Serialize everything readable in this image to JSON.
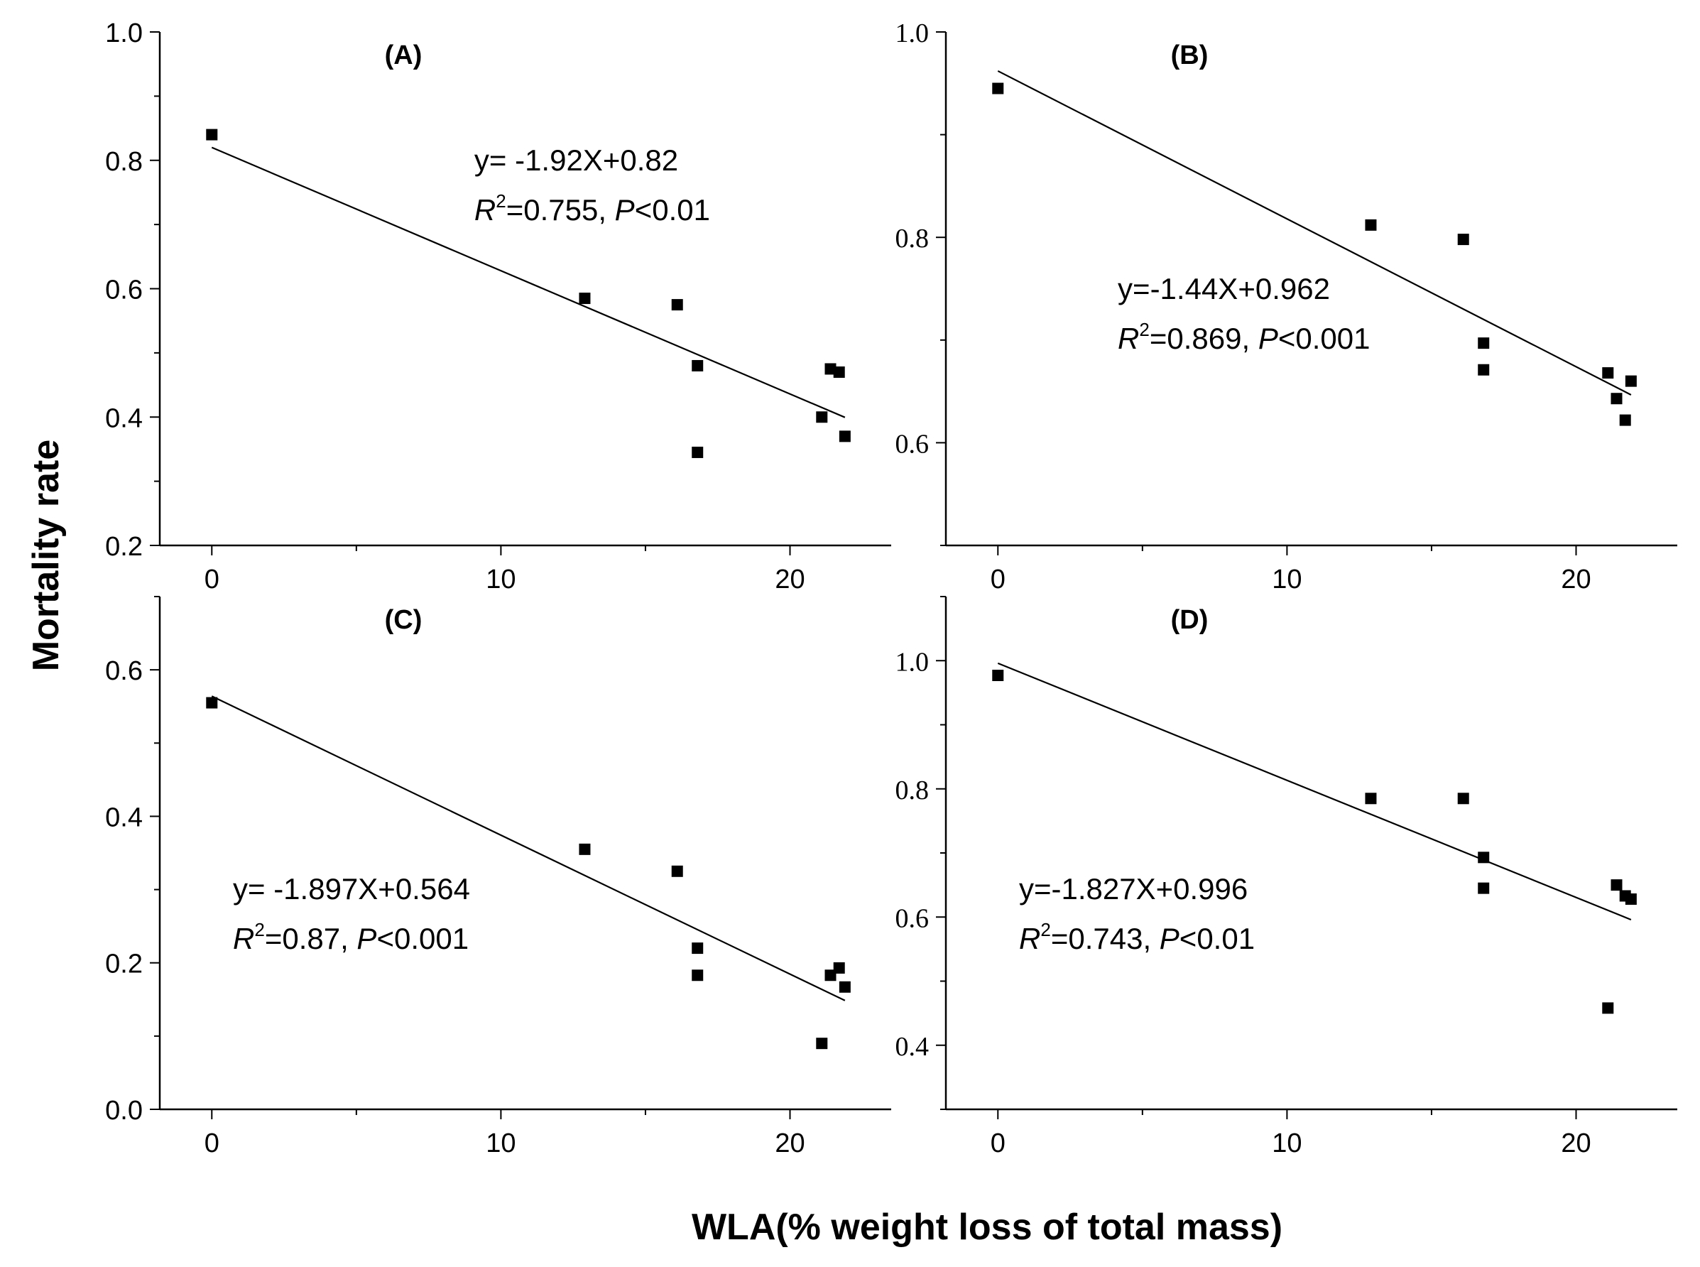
{
  "figure": {
    "ylabel": "Mortality rate",
    "xlabel": "WLA(% weight loss of total mass)"
  },
  "chart_data": [
    {
      "type": "scatter",
      "title": "(A)",
      "xlabel": "WLA(% weight loss of total mass)",
      "ylabel": "Mortality rate",
      "xlim": [
        -1.8,
        23.5
      ],
      "ylim": [
        0.2,
        1.0
      ],
      "xticks": [
        0,
        10,
        20
      ],
      "yticks": [
        0.2,
        0.4,
        0.6,
        0.8,
        1.0
      ],
      "ytick_labels": [
        "0.2",
        "0.4",
        "0.6",
        "0.8",
        "1.0"
      ],
      "tick_font": "sans",
      "show_xticklabels": true,
      "x": [
        0,
        12.9,
        16.1,
        16.8,
        16.8,
        21.1,
        21.4,
        21.7,
        21.9
      ],
      "y": [
        0.84,
        0.585,
        0.575,
        0.48,
        0.345,
        0.4,
        0.475,
        0.47,
        0.37
      ],
      "fit": {
        "slope": -0.0192,
        "intercept": 0.82,
        "x_range": [
          0,
          21.9
        ]
      },
      "equation": "y= -1.92X+0.82",
      "r2_label": "R",
      "r2_value": "=0.755, ",
      "p_label": "P",
      "p_value": "<0.01",
      "annotation_pos": "top-right"
    },
    {
      "type": "scatter",
      "title": "(B)",
      "xlabel": "WLA(% weight loss of total mass)",
      "ylabel": "Mortality rate",
      "xlim": [
        -1.8,
        23.5
      ],
      "ylim": [
        0.5,
        1.0
      ],
      "xticks": [
        0,
        10,
        20
      ],
      "yticks": [
        0.6,
        0.8,
        1.0
      ],
      "ytick_labels": [
        "0.6",
        "0.8",
        "1.0"
      ],
      "tick_font": "serif",
      "show_xticklabels": true,
      "x": [
        0,
        12.9,
        16.1,
        16.8,
        16.8,
        21.1,
        21.4,
        21.7,
        21.9
      ],
      "y": [
        0.945,
        0.812,
        0.798,
        0.697,
        0.671,
        0.668,
        0.643,
        0.622,
        0.66
      ],
      "fit": {
        "slope": -0.0144,
        "intercept": 0.962,
        "x_range": [
          0,
          21.9
        ]
      },
      "equation": "y=-1.44X+0.962",
      "r2_label": "R",
      "r2_value": "=0.869, ",
      "p_label": "P",
      "p_value": "<0.001",
      "annotation_pos": "middle-right"
    },
    {
      "type": "scatter",
      "title": "(C)",
      "xlabel": "WLA(% weight loss of total mass)",
      "ylabel": "Mortality rate",
      "xlim": [
        -1.8,
        23.5
      ],
      "ylim": [
        0.0,
        0.7
      ],
      "xticks": [
        0,
        10,
        20
      ],
      "yticks": [
        0.0,
        0.2,
        0.4,
        0.6
      ],
      "ytick_labels": [
        "0.0",
        "0.2",
        "0.4",
        "0.6"
      ],
      "tick_font": "sans",
      "show_xticklabels": true,
      "x": [
        0,
        12.9,
        16.1,
        16.8,
        16.8,
        21.1,
        21.4,
        21.7,
        21.9
      ],
      "y": [
        0.555,
        0.355,
        0.325,
        0.22,
        0.183,
        0.09,
        0.183,
        0.193,
        0.167
      ],
      "fit": {
        "slope": -0.01897,
        "intercept": 0.564,
        "x_range": [
          0,
          21.9
        ]
      },
      "equation": "y= -1.897X+0.564",
      "r2_label": "R",
      "r2_value": "=0.87, ",
      "p_label": "P",
      "p_value": "<0.001",
      "annotation_pos": "middle-center"
    },
    {
      "type": "scatter",
      "title": "(D)",
      "xlabel": "WLA(% weight loss of total mass)",
      "ylabel": "Mortality rate",
      "xlim": [
        -1.8,
        23.5
      ],
      "ylim": [
        0.3,
        1.1
      ],
      "xticks": [
        0,
        10,
        20
      ],
      "yticks": [
        0.4,
        0.6,
        0.8,
        1.0
      ],
      "ytick_labels": [
        "0.4",
        "0.6",
        "0.8",
        "1.0"
      ],
      "tick_font": "serif",
      "show_xticklabels": true,
      "x": [
        0,
        12.9,
        16.1,
        16.8,
        16.8,
        21.1,
        21.4,
        21.7,
        21.9
      ],
      "y": [
        0.977,
        0.785,
        0.785,
        0.693,
        0.645,
        0.458,
        0.65,
        0.633,
        0.628
      ],
      "fit": {
        "slope": -0.01827,
        "intercept": 0.996,
        "x_range": [
          0,
          21.9
        ]
      },
      "equation": "y=-1.827X+0.996",
      "r2_label": "R",
      "r2_value": "=0.743, ",
      "p_label": "P",
      "p_value": "<0.01",
      "annotation_pos": "middle-center"
    }
  ]
}
